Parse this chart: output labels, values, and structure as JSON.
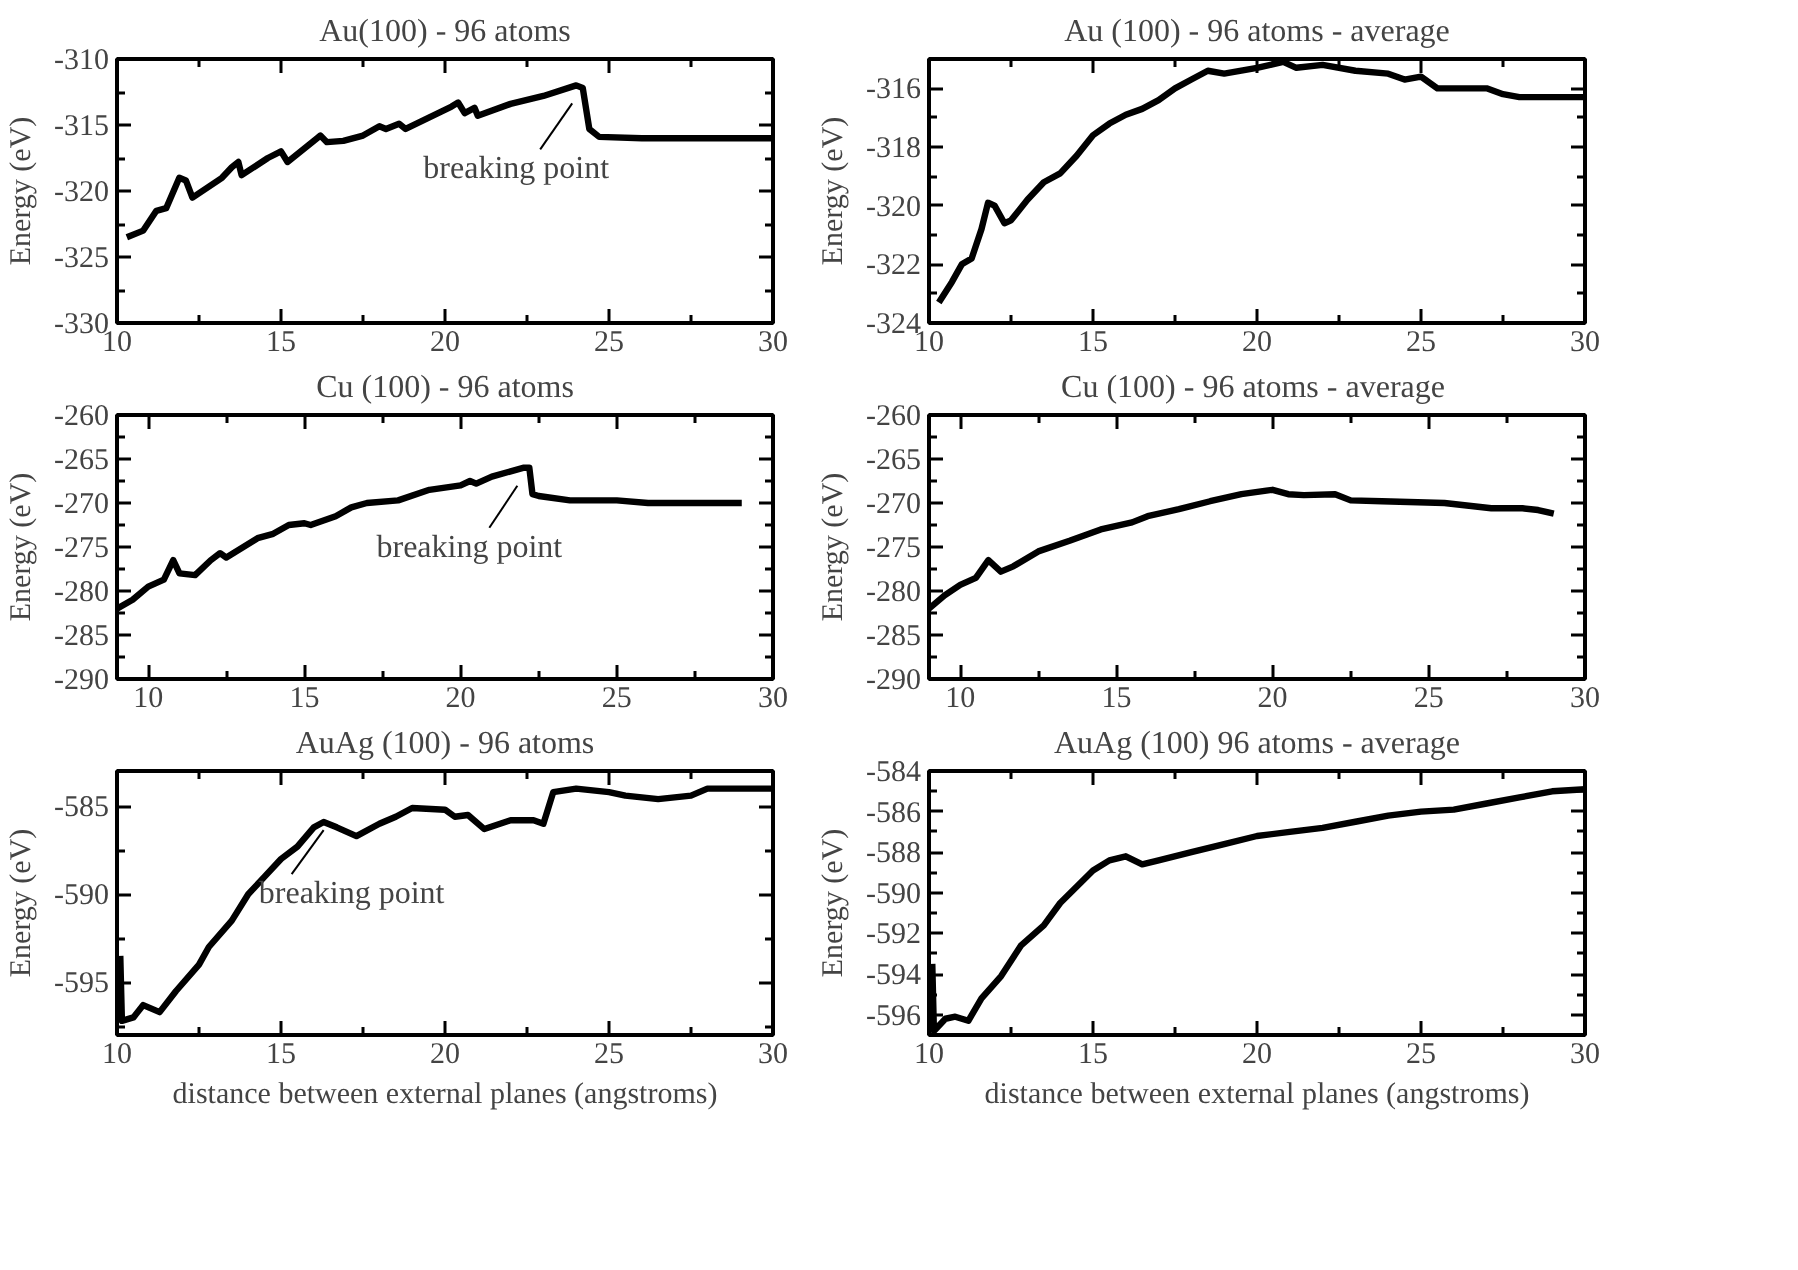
{
  "chart_data": [
    {
      "type": "line",
      "title": "Au(100) - 96 atoms",
      "ylabel": "Energy (eV)",
      "x": [
        10.3,
        10.8,
        11.2,
        11.5,
        11.9,
        12.1,
        12.3,
        13.2,
        13.5,
        13.7,
        13.8,
        14.6,
        15.0,
        15.2,
        16.1,
        16.2,
        16.4,
        16.9,
        17.5,
        18.0,
        18.2,
        18.6,
        18.8,
        20.2,
        20.4,
        20.6,
        20.9,
        21.0,
        22.0,
        23.0,
        24.0,
        24.2,
        24.4,
        24.7,
        26,
        28,
        30
      ],
      "series": [
        {
          "color": "#000000",
          "values": [
            -323.5,
            -323,
            -321.5,
            -321.3,
            -319,
            -319.2,
            -320.5,
            -319,
            -318.2,
            -317.8,
            -318.8,
            -317.5,
            -317,
            -317.8,
            -316,
            -315.8,
            -316.3,
            -316.2,
            -315.8,
            -315.1,
            -315.3,
            -314.9,
            -315.3,
            -313.6,
            -313.3,
            -314.1,
            -313.7,
            -314.3,
            -313.4,
            -312.8,
            -312.0,
            -312.2,
            -315.3,
            -315.9,
            -316,
            -316,
            -316
          ]
        }
      ],
      "xlim": [
        10,
        30
      ],
      "ylim": [
        -330,
        -310
      ],
      "xticks": [
        10,
        {
          "value": 12.5,
          "label": null
        },
        15,
        {
          "value": 17.5,
          "label": null
        },
        20,
        {
          "value": 22.5,
          "label": null
        },
        25,
        {
          "value": 27.5,
          "label": null
        },
        30
      ],
      "yticks": [
        -330,
        {
          "value": -327.5,
          "label": null
        },
        -325,
        {
          "value": -322.5,
          "label": null
        },
        -320,
        {
          "value": -317.5,
          "label": null
        },
        -315,
        {
          "value": -312.5,
          "label": null
        },
        -310
      ],
      "annotations": [
        {
          "text": "breaking point",
          "x": 24.0,
          "y": -312.0
        }
      ]
    },
    {
      "type": "line",
      "title": "Au (100) - 96 atoms - average",
      "ylabel": "Energy (eV)",
      "x": [
        10.3,
        10.7,
        11.0,
        11.3,
        11.6,
        11.8,
        12.0,
        12.3,
        12.5,
        13.0,
        13.5,
        14.0,
        14.5,
        15.0,
        15.5,
        16.0,
        16.5,
        17.0,
        17.5,
        18.0,
        18.5,
        19.0,
        20.0,
        20.8,
        21.2,
        22.0,
        23.0,
        24.0,
        24.5,
        25.0,
        25.5,
        27.0,
        27.5,
        28.0,
        30
      ],
      "series": [
        {
          "color": "#000000",
          "values": [
            -323.3,
            -322.6,
            -322.0,
            -321.8,
            -320.8,
            -319.9,
            -320.0,
            -320.6,
            -320.5,
            -319.8,
            -319.2,
            -318.9,
            -318.3,
            -317.6,
            -317.2,
            -316.9,
            -316.7,
            -316.4,
            -316.0,
            -315.7,
            -315.4,
            -315.5,
            -315.3,
            -315.1,
            -315.3,
            -315.2,
            -315.4,
            -315.5,
            -315.7,
            -315.6,
            -316.0,
            -316.0,
            -316.2,
            -316.3,
            -316.3
          ]
        }
      ],
      "xlim": [
        10,
        30
      ],
      "ylim": [
        -324,
        -315
      ],
      "xticks": [
        10,
        {
          "value": 12.5,
          "label": null
        },
        15,
        {
          "value": 17.5,
          "label": null
        },
        20,
        {
          "value": 22.5,
          "label": null
        },
        25,
        {
          "value": 27.5,
          "label": null
        },
        30
      ],
      "yticks": [
        -324,
        {
          "value": -323,
          "label": null
        },
        -322,
        {
          "value": -321,
          "label": null
        },
        -320,
        {
          "value": -319,
          "label": null
        },
        -318,
        {
          "value": -317,
          "label": null
        },
        -316
      ]
    },
    {
      "type": "line",
      "title": "Cu (100) - 96 atoms",
      "ylabel": "Energy (eV)",
      "x": [
        9,
        9.5,
        10,
        10.5,
        10.8,
        11.0,
        11.5,
        12.0,
        12.3,
        12.5,
        13.5,
        14,
        14.5,
        15,
        15.2,
        16,
        16.5,
        17,
        18,
        19,
        20,
        20.3,
        20.5,
        21,
        22,
        22.2,
        22.3,
        22.5,
        23.5,
        25,
        26,
        29
      ],
      "series": [
        {
          "color": "#000000",
          "values": [
            -282,
            -281,
            -279.5,
            -278.7,
            -276.5,
            -278,
            -278.2,
            -276.5,
            -275.7,
            -276.2,
            -274,
            -273.5,
            -272.5,
            -272.3,
            -272.5,
            -271.5,
            -270.5,
            -270,
            -269.7,
            -268.5,
            -268,
            -267.5,
            -267.8,
            -267,
            -266,
            -266,
            -269,
            -269.2,
            -269.7,
            -269.7,
            -270,
            -270
          ]
        }
      ],
      "xlim": [
        9,
        30
      ],
      "ylim": [
        -290,
        -260
      ],
      "xticks": [
        10,
        {
          "value": 12.5,
          "label": null
        },
        15,
        {
          "value": 17.5,
          "label": null
        },
        20,
        {
          "value": 22.5,
          "label": null
        },
        25,
        {
          "value": 27.5,
          "label": null
        },
        30
      ],
      "yticks": [
        -290,
        {
          "value": -287.5,
          "label": null
        },
        -285,
        {
          "value": -282.5,
          "label": null
        },
        -280,
        {
          "value": -277.5,
          "label": null
        },
        -275,
        {
          "value": -272.5,
          "label": null
        },
        -270,
        {
          "value": -267.5,
          "label": null
        },
        -265,
        {
          "value": -262.5,
          "label": null
        },
        -260
      ],
      "annotations": [
        {
          "text": "breaking point",
          "x": 22.2,
          "y": -266.0
        }
      ]
    },
    {
      "type": "line",
      "title": "Cu (100) - 96 atoms -  average",
      "ylabel": "Energy (eV)",
      "x": [
        9,
        9.5,
        10,
        10.5,
        10.9,
        11.3,
        11.7,
        12.5,
        13.5,
        14.5,
        15.5,
        16,
        17,
        18,
        19,
        19.8,
        20,
        20.5,
        21,
        22,
        22.5,
        23.5,
        25.5,
        26.5,
        27,
        28,
        28.5,
        29
      ],
      "series": [
        {
          "color": "#000000",
          "values": [
            -282,
            -280.5,
            -279.3,
            -278.5,
            -276.5,
            -277.8,
            -277.2,
            -275.5,
            -274.3,
            -273,
            -272.2,
            -271.5,
            -270.7,
            -269.8,
            -269,
            -268.6,
            -268.5,
            -269,
            -269.1,
            -269,
            -269.7,
            -269.8,
            -270,
            -270.4,
            -270.6,
            -270.6,
            -270.8,
            -271.2
          ]
        }
      ],
      "xlim": [
        9,
        30
      ],
      "ylim": [
        -290,
        -260
      ],
      "xticks": [
        10,
        {
          "value": 12.5,
          "label": null
        },
        15,
        {
          "value": 17.5,
          "label": null
        },
        20,
        {
          "value": 22.5,
          "label": null
        },
        25,
        {
          "value": 27.5,
          "label": null
        },
        30
      ],
      "yticks": [
        -290,
        {
          "value": -287.5,
          "label": null
        },
        -285,
        {
          "value": -282.5,
          "label": null
        },
        -280,
        {
          "value": -277.5,
          "label": null
        },
        -275,
        {
          "value": -272.5,
          "label": null
        },
        -270,
        {
          "value": -267.5,
          "label": null
        },
        -265,
        {
          "value": -262.5,
          "label": null
        },
        -260
      ]
    },
    {
      "type": "line",
      "title": "AuAg (100) - 96 atoms",
      "xlabel": "distance between external planes (angstroms)",
      "ylabel": "Energy (eV)",
      "x": [
        10.1,
        10.15,
        10.5,
        10.8,
        11.3,
        11.8,
        12.5,
        12.8,
        13.5,
        14,
        14.5,
        15,
        15.5,
        16,
        16.3,
        16.7,
        17.3,
        18,
        18.5,
        19,
        20,
        20.3,
        20.7,
        21.2,
        22,
        22.7,
        23,
        23.3,
        24,
        25,
        25.5,
        26.5,
        27.5,
        28,
        30
      ],
      "series": [
        {
          "color": "#000000",
          "values": [
            -593.5,
            -597.2,
            -597,
            -596.3,
            -596.7,
            -595.5,
            -594,
            -593,
            -591.5,
            -590,
            -589,
            -588,
            -587.3,
            -586.2,
            -585.9,
            -586.2,
            -586.7,
            -586,
            -585.6,
            -585.1,
            -585.2,
            -585.6,
            -585.5,
            -586.3,
            -585.8,
            -585.8,
            -586,
            -584.2,
            -584.0,
            -584.2,
            -584.4,
            -584.6,
            -584.4,
            -584,
            -584
          ]
        }
      ],
      "xlim": [
        10,
        30
      ],
      "ylim": [
        -598,
        -583
      ],
      "xticks": [
        10,
        {
          "value": 12.5,
          "label": null
        },
        15,
        {
          "value": 17.5,
          "label": null
        },
        20,
        {
          "value": 22.5,
          "label": null
        },
        25,
        {
          "value": 27.5,
          "label": null
        },
        30
      ],
      "yticks": [
        {
          "value": -597.5,
          "label": null
        },
        -595,
        {
          "value": -592.5,
          "label": null
        },
        -590,
        {
          "value": -587.5,
          "label": null
        },
        -585
      ],
      "annotations": [
        {
          "text": "breaking point",
          "x": 16.3,
          "y": -585.9
        }
      ]
    },
    {
      "type": "line",
      "title": "AuAg (100) 96 atoms - average",
      "xlabel": "distance between external planes (angstroms)",
      "ylabel": "Energy (eV)",
      "x": [
        10.1,
        10.15,
        10.5,
        10.8,
        11.2,
        11.6,
        12.2,
        12.8,
        13.5,
        14,
        14.5,
        15,
        15.5,
        16,
        16.5,
        17,
        18,
        19,
        20,
        21,
        22,
        23,
        24,
        25,
        26,
        27,
        28,
        29,
        30
      ],
      "series": [
        {
          "color": "#000000",
          "values": [
            -593.5,
            -596.8,
            -596.2,
            -596.1,
            -596.3,
            -595.2,
            -594.1,
            -592.6,
            -591.6,
            -590.5,
            -589.7,
            -588.9,
            -588.4,
            -588.2,
            -588.6,
            -588.4,
            -588.0,
            -587.6,
            -587.2,
            -587,
            -586.8,
            -586.5,
            -586.2,
            -586,
            -585.9,
            -585.6,
            -585.3,
            -585,
            -584.9
          ]
        }
      ],
      "xlim": [
        10,
        30
      ],
      "ylim": [
        -597,
        -584
      ],
      "xticks": [
        10,
        {
          "value": 12.5,
          "label": null
        },
        15,
        {
          "value": 17.5,
          "label": null
        },
        20,
        {
          "value": 22.5,
          "label": null
        },
        25,
        {
          "value": 27.5,
          "label": null
        },
        30
      ],
      "yticks": [
        -596,
        {
          "value": -595,
          "label": null
        },
        -594,
        {
          "value": -593,
          "label": null
        },
        -592,
        {
          "value": -591,
          "label": null
        },
        -590,
        {
          "value": -589,
          "label": null
        },
        -588,
        {
          "value": -587,
          "label": null
        },
        -586,
        {
          "value": -585,
          "label": null
        },
        -584
      ]
    }
  ]
}
